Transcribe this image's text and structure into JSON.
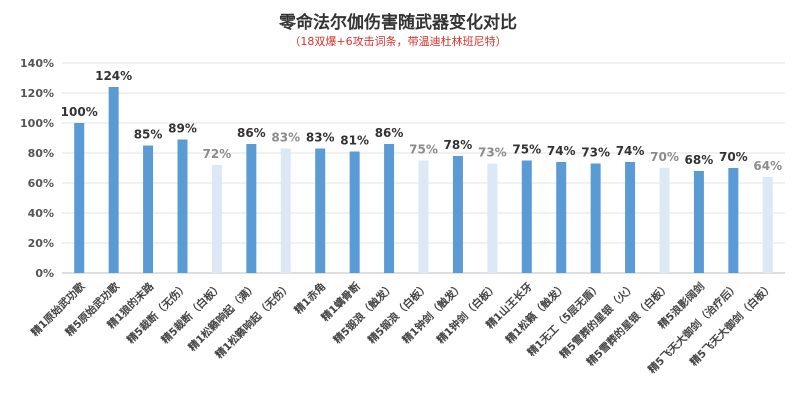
{
  "chart_data": {
    "type": "bar",
    "title": "零命法尔伽伤害随武器变化对比",
    "subtitle": "（18双爆+6攻击词条，带温迪杜林班尼特）",
    "xlabel": "",
    "ylabel": "",
    "ylim": [
      0,
      140
    ],
    "ytick_step": 20,
    "ytick_suffix": "%",
    "grid": true,
    "legend": "none",
    "colors": {
      "dark": "#5b9bd5",
      "light": "#dce8f5",
      "dark_label": "#333333",
      "light_label": "#8c8c8c"
    },
    "categories": [
      "精1原始武功歌",
      "精5原始武功歌",
      "精1狼的末路",
      "精5裁断（无伤）",
      "精5裁断（白板）",
      "精1松籁响起（满）",
      "精1松籁响起（无伤）",
      "精1赤角",
      "精1螭骨断",
      "精5锻浪（触发）",
      "精5锻浪（白板）",
      "精1钟剑（触发）",
      "精1钟剑（白板）",
      "精1山王长牙",
      "精1松籁（触发）",
      "精1无工（5层无盾）",
      "精5雪葬的星银（火）",
      "精5雪葬的星银（白板）",
      "精5浪影阔剑",
      "精5飞天大御剑（治疗后）",
      "精5飞天大御剑（白板）"
    ],
    "values": [
      100,
      124,
      85,
      89,
      72,
      86,
      83,
      83,
      81,
      86,
      75,
      78,
      73,
      75,
      74,
      73,
      74,
      70,
      68,
      70,
      64
    ],
    "value_labels": [
      "100%",
      "124%",
      "85%",
      "89%",
      "72%",
      "86%",
      "83%",
      "83%",
      "81%",
      "86%",
      "75%",
      "78%",
      "73%",
      "75%",
      "74%",
      "73%",
      "74%",
      "70%",
      "68%",
      "70%",
      "64%"
    ],
    "styles": [
      "dark",
      "dark",
      "dark",
      "dark",
      "light",
      "dark",
      "light",
      "dark",
      "dark",
      "dark",
      "light",
      "dark",
      "light",
      "dark",
      "dark",
      "dark",
      "dark",
      "light",
      "dark",
      "dark",
      "light"
    ]
  }
}
